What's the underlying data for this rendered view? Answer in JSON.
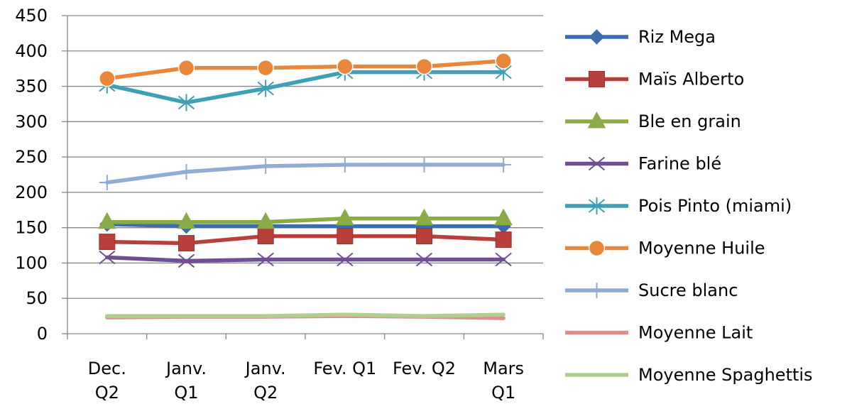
{
  "chart_data": {
    "type": "line",
    "categories": [
      [
        "Dec.",
        "Q2"
      ],
      [
        "Janv.",
        "Q1"
      ],
      [
        "Janv.",
        "Q2"
      ],
      [
        "Fev. Q1"
      ],
      [
        "Fev. Q2"
      ],
      [
        "Mars",
        "Q1"
      ]
    ],
    "ylim": [
      0,
      450
    ],
    "yticks": [
      "0",
      "50",
      "100",
      "150",
      "200",
      "250",
      "300",
      "350",
      "400",
      "450"
    ],
    "grid": true,
    "legend_position": "right",
    "series": [
      {
        "name": "Riz Mega",
        "color": "#3c6eae",
        "marker": "diamond",
        "values": [
          155,
          152,
          152,
          152,
          152,
          152
        ]
      },
      {
        "name": "Maïs Alberto",
        "color": "#b7403d",
        "marker": "square",
        "values": [
          130,
          128,
          138,
          138,
          138,
          133
        ]
      },
      {
        "name": "Ble en grain",
        "color": "#8bab46",
        "marker": "triangle",
        "values": [
          158,
          158,
          158,
          163,
          163,
          163
        ]
      },
      {
        "name": "Farine blé",
        "color": "#6f4f92",
        "marker": "x",
        "values": [
          108,
          103,
          105,
          105,
          105,
          105
        ]
      },
      {
        "name": "Pois Pinto (miami)",
        "color": "#3fa0b5",
        "marker": "asterisk",
        "values": [
          352,
          327,
          347,
          370,
          370,
          370
        ]
      },
      {
        "name": "Moyenne Huile",
        "color": "#e8873a",
        "marker": "circle",
        "values": [
          361,
          376,
          376,
          378,
          378,
          386
        ]
      },
      {
        "name": "Sucre blanc",
        "color": "#92abd3",
        "marker": "plus",
        "values": [
          214,
          229,
          237,
          239,
          239,
          239
        ]
      },
      {
        "name": "Moyenne Lait",
        "color": "#dc8f8d",
        "marker": "none",
        "values": [
          23,
          24,
          24,
          25,
          24,
          22
        ]
      },
      {
        "name": "Moyenne Spaghettis",
        "color": "#b0cf8e",
        "marker": "none",
        "values": [
          25,
          25,
          25,
          27,
          25,
          27
        ]
      }
    ]
  }
}
